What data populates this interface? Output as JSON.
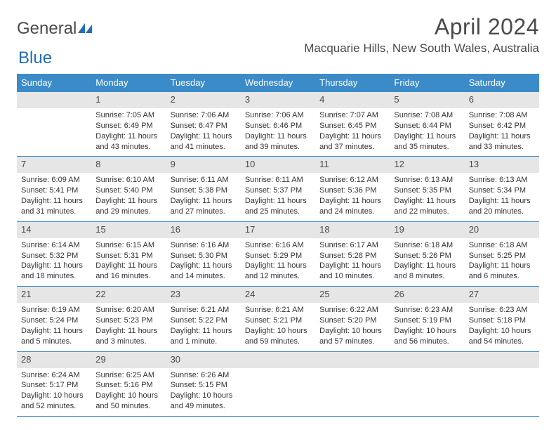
{
  "brand": {
    "text1": "General",
    "text2": "Blue"
  },
  "title": "April 2024",
  "location": "Macquarie Hills, New South Wales, Australia",
  "colors": {
    "header_bg": "#3b8bc9",
    "header_text": "#ffffff",
    "daynum_bg": "#e6e6e6",
    "text": "#333333",
    "title_text": "#4a4a4a",
    "week_border": "#3b8bc9",
    "background": "#ffffff",
    "logo_accent": "#1f6fb2"
  },
  "typography": {
    "title_fontsize": 32,
    "location_fontsize": 17,
    "logo_fontsize": 24,
    "dayheader_fontsize": 13,
    "daynum_fontsize": 13,
    "cell_fontsize": 11
  },
  "day_names": [
    "Sunday",
    "Monday",
    "Tuesday",
    "Wednesday",
    "Thursday",
    "Friday",
    "Saturday"
  ],
  "weeks": [
    [
      {
        "day": "",
        "sunrise": "",
        "sunset": "",
        "daylight": ""
      },
      {
        "day": "1",
        "sunrise": "Sunrise: 7:05 AM",
        "sunset": "Sunset: 6:49 PM",
        "daylight": "Daylight: 11 hours and 43 minutes."
      },
      {
        "day": "2",
        "sunrise": "Sunrise: 7:06 AM",
        "sunset": "Sunset: 6:47 PM",
        "daylight": "Daylight: 11 hours and 41 minutes."
      },
      {
        "day": "3",
        "sunrise": "Sunrise: 7:06 AM",
        "sunset": "Sunset: 6:46 PM",
        "daylight": "Daylight: 11 hours and 39 minutes."
      },
      {
        "day": "4",
        "sunrise": "Sunrise: 7:07 AM",
        "sunset": "Sunset: 6:45 PM",
        "daylight": "Daylight: 11 hours and 37 minutes."
      },
      {
        "day": "5",
        "sunrise": "Sunrise: 7:08 AM",
        "sunset": "Sunset: 6:44 PM",
        "daylight": "Daylight: 11 hours and 35 minutes."
      },
      {
        "day": "6",
        "sunrise": "Sunrise: 7:08 AM",
        "sunset": "Sunset: 6:42 PM",
        "daylight": "Daylight: 11 hours and 33 minutes."
      }
    ],
    [
      {
        "day": "7",
        "sunrise": "Sunrise: 6:09 AM",
        "sunset": "Sunset: 5:41 PM",
        "daylight": "Daylight: 11 hours and 31 minutes."
      },
      {
        "day": "8",
        "sunrise": "Sunrise: 6:10 AM",
        "sunset": "Sunset: 5:40 PM",
        "daylight": "Daylight: 11 hours and 29 minutes."
      },
      {
        "day": "9",
        "sunrise": "Sunrise: 6:11 AM",
        "sunset": "Sunset: 5:38 PM",
        "daylight": "Daylight: 11 hours and 27 minutes."
      },
      {
        "day": "10",
        "sunrise": "Sunrise: 6:11 AM",
        "sunset": "Sunset: 5:37 PM",
        "daylight": "Daylight: 11 hours and 25 minutes."
      },
      {
        "day": "11",
        "sunrise": "Sunrise: 6:12 AM",
        "sunset": "Sunset: 5:36 PM",
        "daylight": "Daylight: 11 hours and 24 minutes."
      },
      {
        "day": "12",
        "sunrise": "Sunrise: 6:13 AM",
        "sunset": "Sunset: 5:35 PM",
        "daylight": "Daylight: 11 hours and 22 minutes."
      },
      {
        "day": "13",
        "sunrise": "Sunrise: 6:13 AM",
        "sunset": "Sunset: 5:34 PM",
        "daylight": "Daylight: 11 hours and 20 minutes."
      }
    ],
    [
      {
        "day": "14",
        "sunrise": "Sunrise: 6:14 AM",
        "sunset": "Sunset: 5:32 PM",
        "daylight": "Daylight: 11 hours and 18 minutes."
      },
      {
        "day": "15",
        "sunrise": "Sunrise: 6:15 AM",
        "sunset": "Sunset: 5:31 PM",
        "daylight": "Daylight: 11 hours and 16 minutes."
      },
      {
        "day": "16",
        "sunrise": "Sunrise: 6:16 AM",
        "sunset": "Sunset: 5:30 PM",
        "daylight": "Daylight: 11 hours and 14 minutes."
      },
      {
        "day": "17",
        "sunrise": "Sunrise: 6:16 AM",
        "sunset": "Sunset: 5:29 PM",
        "daylight": "Daylight: 11 hours and 12 minutes."
      },
      {
        "day": "18",
        "sunrise": "Sunrise: 6:17 AM",
        "sunset": "Sunset: 5:28 PM",
        "daylight": "Daylight: 11 hours and 10 minutes."
      },
      {
        "day": "19",
        "sunrise": "Sunrise: 6:18 AM",
        "sunset": "Sunset: 5:26 PM",
        "daylight": "Daylight: 11 hours and 8 minutes."
      },
      {
        "day": "20",
        "sunrise": "Sunrise: 6:18 AM",
        "sunset": "Sunset: 5:25 PM",
        "daylight": "Daylight: 11 hours and 6 minutes."
      }
    ],
    [
      {
        "day": "21",
        "sunrise": "Sunrise: 6:19 AM",
        "sunset": "Sunset: 5:24 PM",
        "daylight": "Daylight: 11 hours and 5 minutes."
      },
      {
        "day": "22",
        "sunrise": "Sunrise: 6:20 AM",
        "sunset": "Sunset: 5:23 PM",
        "daylight": "Daylight: 11 hours and 3 minutes."
      },
      {
        "day": "23",
        "sunrise": "Sunrise: 6:21 AM",
        "sunset": "Sunset: 5:22 PM",
        "daylight": "Daylight: 11 hours and 1 minute."
      },
      {
        "day": "24",
        "sunrise": "Sunrise: 6:21 AM",
        "sunset": "Sunset: 5:21 PM",
        "daylight": "Daylight: 10 hours and 59 minutes."
      },
      {
        "day": "25",
        "sunrise": "Sunrise: 6:22 AM",
        "sunset": "Sunset: 5:20 PM",
        "daylight": "Daylight: 10 hours and 57 minutes."
      },
      {
        "day": "26",
        "sunrise": "Sunrise: 6:23 AM",
        "sunset": "Sunset: 5:19 PM",
        "daylight": "Daylight: 10 hours and 56 minutes."
      },
      {
        "day": "27",
        "sunrise": "Sunrise: 6:23 AM",
        "sunset": "Sunset: 5:18 PM",
        "daylight": "Daylight: 10 hours and 54 minutes."
      }
    ],
    [
      {
        "day": "28",
        "sunrise": "Sunrise: 6:24 AM",
        "sunset": "Sunset: 5:17 PM",
        "daylight": "Daylight: 10 hours and 52 minutes."
      },
      {
        "day": "29",
        "sunrise": "Sunrise: 6:25 AM",
        "sunset": "Sunset: 5:16 PM",
        "daylight": "Daylight: 10 hours and 50 minutes."
      },
      {
        "day": "30",
        "sunrise": "Sunrise: 6:26 AM",
        "sunset": "Sunset: 5:15 PM",
        "daylight": "Daylight: 10 hours and 49 minutes."
      },
      {
        "day": "",
        "sunrise": "",
        "sunset": "",
        "daylight": ""
      },
      {
        "day": "",
        "sunrise": "",
        "sunset": "",
        "daylight": ""
      },
      {
        "day": "",
        "sunrise": "",
        "sunset": "",
        "daylight": ""
      },
      {
        "day": "",
        "sunrise": "",
        "sunset": "",
        "daylight": ""
      }
    ]
  ]
}
